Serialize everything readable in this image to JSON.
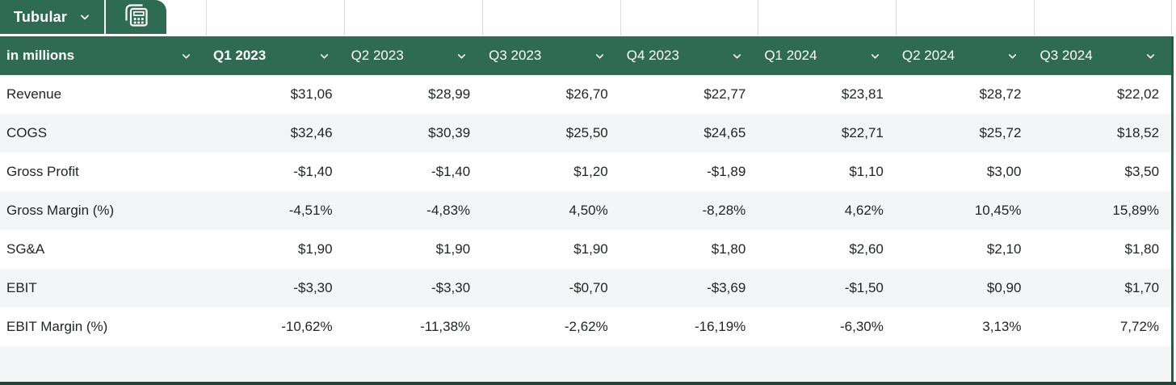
{
  "tabbar": {
    "tab_label": "Tubular"
  },
  "header": {
    "row_label_header": "in millions",
    "columns": [
      "Q1 2023",
      "Q2 2023",
      "Q3 2023",
      "Q4 2023",
      "Q1 2024",
      "Q2 2024",
      "Q3 2024"
    ]
  },
  "rows": [
    {
      "label": "Revenue",
      "values": [
        "$31,06",
        "$28,99",
        "$26,70",
        "$22,77",
        "$23,81",
        "$28,72",
        "$22,02"
      ]
    },
    {
      "label": "COGS",
      "values": [
        "$32,46",
        "$30,39",
        "$25,50",
        "$24,65",
        "$22,71",
        "$25,72",
        "$18,52"
      ]
    },
    {
      "label": "Gross Profit",
      "values": [
        "-$1,40",
        "-$1,40",
        "$1,20",
        "-$1,89",
        "$1,10",
        "$3,00",
        "$3,50"
      ]
    },
    {
      "label": "Gross Margin (%)",
      "values": [
        "-4,51%",
        "-4,83%",
        "4,50%",
        "-8,28%",
        "4,62%",
        "10,45%",
        "15,89%"
      ]
    },
    {
      "label": "SG&A",
      "values": [
        "$1,90",
        "$1,90",
        "$1,90",
        "$1,80",
        "$2,60",
        "$2,10",
        "$1,80"
      ]
    },
    {
      "label": "EBIT",
      "values": [
        "-$3,30",
        "-$3,30",
        "-$0,70",
        "-$3,69",
        "-$1,50",
        "$0,90",
        "$1,70"
      ]
    },
    {
      "label": "EBIT Margin (%)",
      "values": [
        "-10,62%",
        "-11,38%",
        "-2,62%",
        "-16,19%",
        "-6,30%",
        "3,13%",
        "7,72%"
      ]
    }
  ],
  "colors": {
    "green": "#2F6A52",
    "green-bottom": "#1C4736",
    "right-border": "#2B5743",
    "row-alt": "#F4F5F6",
    "grid-line": "#D9DCDA",
    "cell-text": "#212529",
    "header-text": "#FFFFFF"
  }
}
